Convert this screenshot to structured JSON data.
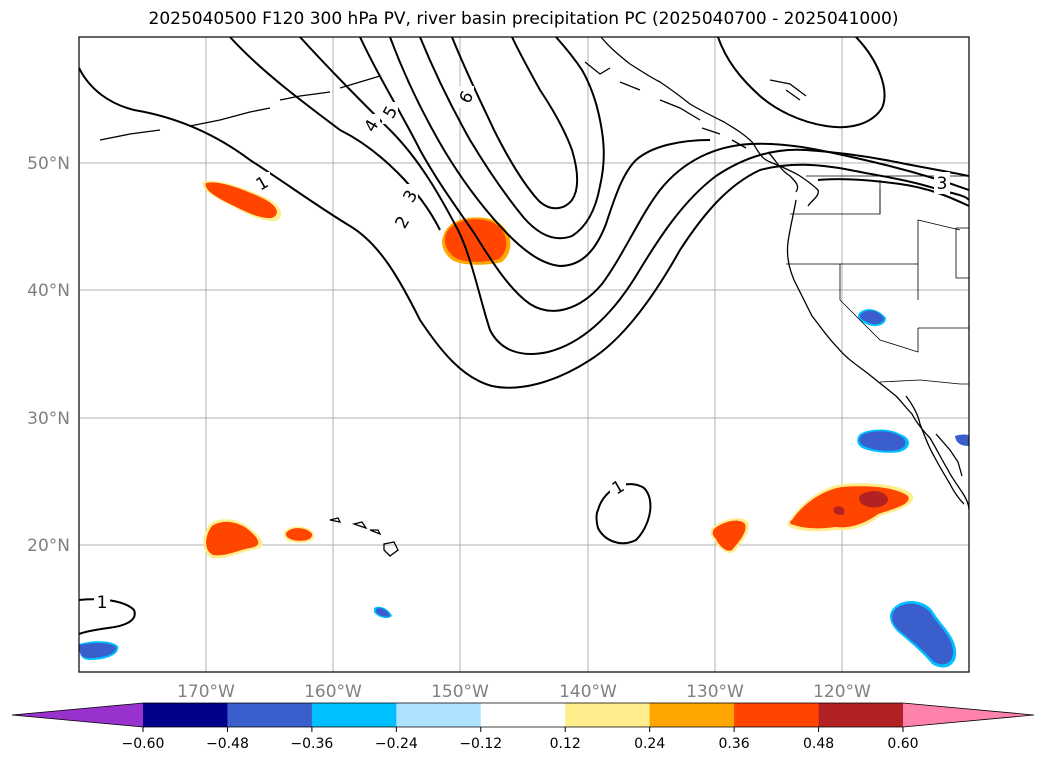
{
  "title": "2025040500 F120 300 hPa PV, river basin precipitation PC (2025040700 - 2025041000)",
  "latitude_labels": [
    "50°N",
    "40°N",
    "30°N",
    "20°N"
  ],
  "longitude_labels": [
    "170°W",
    "160°W",
    "150°W",
    "140°W",
    "130°W",
    "120°W"
  ],
  "contour_labels": [
    "1",
    "1",
    "1",
    "2",
    "3",
    "4",
    "5",
    "6",
    "3"
  ],
  "colorbar": {
    "ticks": [
      "−0.60",
      "−0.48",
      "−0.36",
      "−0.24",
      "−0.12",
      "0.12",
      "0.24",
      "0.36",
      "0.48",
      "0.60"
    ],
    "colors": [
      "#9932cc",
      "#00008b",
      "#3a5fcd",
      "#00bfff",
      "#b0e2ff",
      "#ffffff",
      "#ffec8b",
      "#ffa500",
      "#ff4500",
      "#b22222",
      "#ff82ab"
    ]
  },
  "map_extent": {
    "lon_range": [
      "180°W",
      "110°W"
    ],
    "lat_range": [
      "10°N",
      "60°N"
    ]
  },
  "pv_contour_levels": [
    1,
    2,
    3,
    4,
    5,
    6
  ]
}
